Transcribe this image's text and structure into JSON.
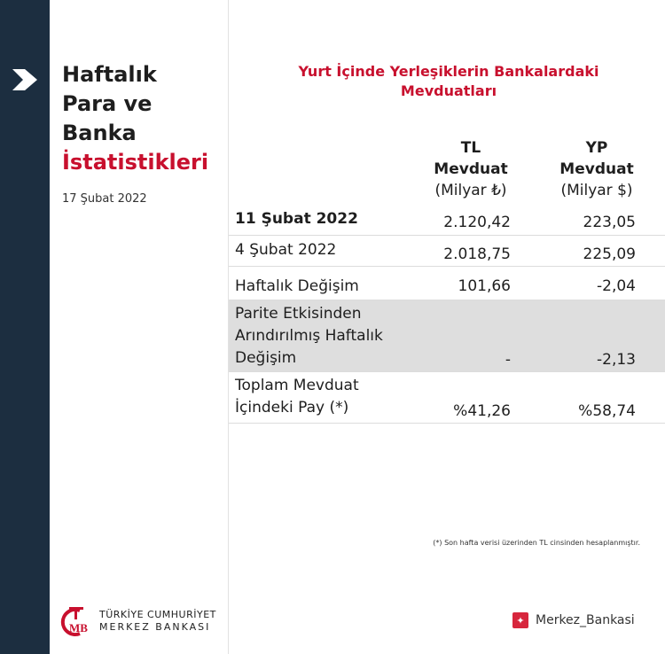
{
  "sidebar": {
    "icon": "chevron-right-icon"
  },
  "title": {
    "line1": "Haftalık",
    "line2": "Para ve",
    "line3": "Banka",
    "line4": "İstatistikleri",
    "date": "17 Şubat 2022"
  },
  "heading": {
    "line1": "Yurt İçinde Yerleşiklerin Bankalardaki",
    "line2": "Mevduatları"
  },
  "columns": [
    {
      "l1": "TL",
      "l2": "Mevduat",
      "unit": "(Milyar ₺)"
    },
    {
      "l1": "YP",
      "l2": "Mevduat",
      "unit": "(Milyar $)"
    }
  ],
  "rows": [
    {
      "label": "11 Şubat 2022",
      "tl": "2.120,42",
      "yp": "223,05"
    },
    {
      "label": "4 Şubat 2022",
      "tl": "2.018,75",
      "yp": "225,09"
    },
    {
      "label": "Haftalık Değişim",
      "tl": "101,66",
      "yp": "-2,04"
    },
    {
      "label_l1": "Parite Etkisinden",
      "label_l2": "Arındırılmış Haftalık",
      "label_l3": "Değişim",
      "tl": "-",
      "yp": "-2,13"
    },
    {
      "label_l1": "Toplam Mevduat",
      "label_l2": "İçindeki Pay (*)",
      "tl": "%41,26",
      "yp": "%58,74"
    }
  ],
  "footnote": "(*) Son hafta verisi üzerinden TL cinsinden hesaplanmıştır.",
  "logo": {
    "line1": "TÜRKİYE CUMHURİYET",
    "line2": "MERKEZ BANKASI"
  },
  "twitter": {
    "handle": "Merkez_Bankasi",
    "icon": "twitter-icon"
  },
  "colors": {
    "sidebar": "#1c2e40",
    "accent": "#c8102e"
  }
}
